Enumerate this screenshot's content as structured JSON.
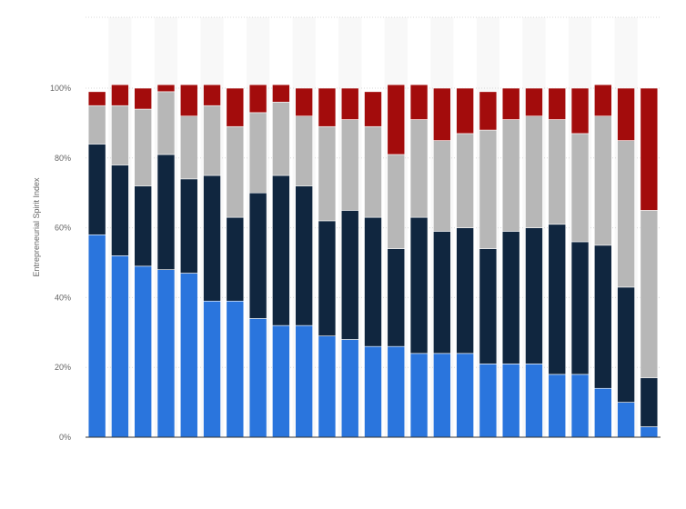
{
  "chart_data": {
    "type": "bar",
    "stacked": true,
    "ylabel": "Entrepreneurial Spirit Index",
    "ylim": [
      0,
      100
    ],
    "yticks": [
      "0%",
      "20%",
      "40%",
      "60%",
      "80%",
      "100%"
    ],
    "grid": true,
    "categories_count": 25,
    "series": [
      {
        "color": "#2a75dd",
        "values": [
          58,
          52,
          49,
          48,
          47,
          39,
          39,
          34,
          32,
          32,
          29,
          28,
          26,
          26,
          24,
          24,
          24,
          21,
          21,
          21,
          18,
          18,
          14,
          10,
          3
        ]
      },
      {
        "color": "#10263f",
        "values": [
          26,
          26,
          23,
          33,
          27,
          36,
          24,
          36,
          43,
          40,
          33,
          37,
          37,
          28,
          39,
          35,
          36,
          33,
          38,
          39,
          43,
          38,
          41,
          33,
          14
        ]
      },
      {
        "color": "#b7b7b7",
        "values": [
          11,
          17,
          22,
          18,
          18,
          20,
          26,
          23,
          21,
          20,
          27,
          26,
          26,
          27,
          28,
          26,
          27,
          34,
          32,
          32,
          30,
          31,
          37,
          42,
          48
        ]
      },
      {
        "color": "#a30c0c",
        "values": [
          4,
          6,
          6,
          2,
          9,
          6,
          11,
          8,
          5,
          8,
          11,
          9,
          10,
          20,
          10,
          15,
          13,
          11,
          9,
          8,
          9,
          13,
          9,
          15,
          35
        ]
      }
    ]
  }
}
